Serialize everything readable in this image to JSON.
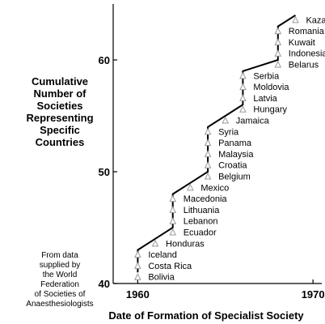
{
  "chart_data": {
    "type": "line",
    "title": "",
    "xlabel": "Date of Formation of Specialist Society",
    "ylabel_lines": [
      "Cumulative",
      "Number of",
      "Societies",
      "Representing",
      "Specific",
      "Countries"
    ],
    "note_lines": [
      "From data",
      "supplied by",
      "the World",
      "Federation",
      "of Societies of",
      "Anaesthesiologists"
    ],
    "xlim": [
      1958.6,
      1970.5
    ],
    "ylim": [
      40,
      65
    ],
    "x_ticks": [
      1960,
      1970
    ],
    "y_ticks": [
      40,
      50,
      60
    ],
    "grid": false,
    "step_points": [
      {
        "x": 1960,
        "y": 41
      },
      {
        "x": 1960,
        "y": 43
      },
      {
        "x": 1961,
        "y": 44
      },
      {
        "x": 1962,
        "y": 45
      },
      {
        "x": 1962,
        "y": 48
      },
      {
        "x": 1963,
        "y": 49
      },
      {
        "x": 1964,
        "y": 50
      },
      {
        "x": 1964,
        "y": 54
      },
      {
        "x": 1965,
        "y": 55
      },
      {
        "x": 1966,
        "y": 56
      },
      {
        "x": 1966,
        "y": 59
      },
      {
        "x": 1968,
        "y": 60
      },
      {
        "x": 1968,
        "y": 63
      },
      {
        "x": 1969,
        "y": 64
      }
    ],
    "countries": [
      {
        "name": "Bolivia",
        "x": 1960,
        "y": 40.6
      },
      {
        "name": "Costa Rica",
        "x": 1960,
        "y": 41.6
      },
      {
        "name": "Iceland",
        "x": 1960,
        "y": 42.6
      },
      {
        "name": "Honduras",
        "x": 1961,
        "y": 43.6
      },
      {
        "name": "Ecuador",
        "x": 1962,
        "y": 44.6
      },
      {
        "name": "Lebanon",
        "x": 1962,
        "y": 45.6
      },
      {
        "name": "Lithuania",
        "x": 1962,
        "y": 46.6
      },
      {
        "name": "Macedonia",
        "x": 1962,
        "y": 47.6
      },
      {
        "name": "Mexico",
        "x": 1963,
        "y": 48.6
      },
      {
        "name": "Belgium",
        "x": 1964,
        "y": 49.6
      },
      {
        "name": "Croatia",
        "x": 1964,
        "y": 50.6
      },
      {
        "name": "Malaysia",
        "x": 1964,
        "y": 51.6
      },
      {
        "name": "Panama",
        "x": 1964,
        "y": 52.6
      },
      {
        "name": "Syria",
        "x": 1964,
        "y": 53.6
      },
      {
        "name": "Jamaica",
        "x": 1965,
        "y": 54.6
      },
      {
        "name": "Hungary",
        "x": 1966,
        "y": 55.6
      },
      {
        "name": "Latvia",
        "x": 1966,
        "y": 56.6
      },
      {
        "name": "Moldovia",
        "x": 1966,
        "y": 57.6
      },
      {
        "name": "Serbia",
        "x": 1966,
        "y": 58.6
      },
      {
        "name": "Belarus",
        "x": 1968,
        "y": 59.6
      },
      {
        "name": "Indonesia",
        "x": 1968,
        "y": 60.6
      },
      {
        "name": "Kuwait",
        "x": 1968,
        "y": 61.6
      },
      {
        "name": "Romania",
        "x": 1968,
        "y": 62.6
      },
      {
        "name": "Kazakhstan",
        "x": 1969,
        "y": 63.6
      }
    ],
    "colors": {
      "line": "#000000",
      "marker": "#999999"
    }
  }
}
